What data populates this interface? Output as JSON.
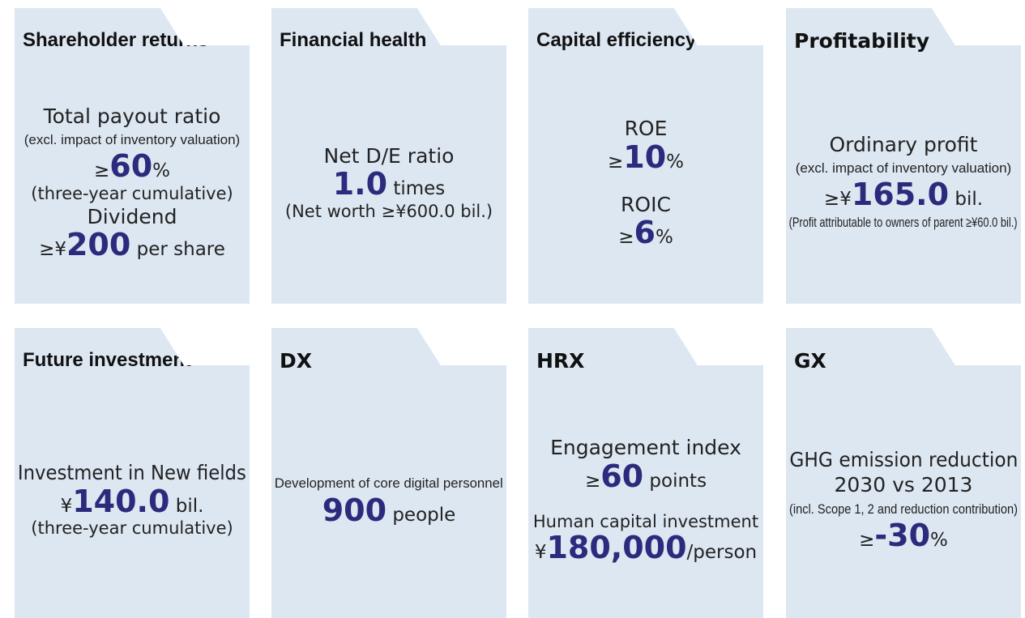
{
  "cards": [
    {
      "title": "Shareholder returns",
      "title_style": "condensed",
      "blocks": [
        [
          {
            "text": "Total payout ratio"
          },
          {
            "text": "(excl. impact of inventory valuation)",
            "style": "note"
          },
          {
            "prefix": "≥",
            "value": "60",
            "suffix": "%"
          },
          {
            "text": "(three-year cumulative)",
            "style": "sub"
          },
          {
            "text": "Dividend"
          },
          {
            "prefix": "≥¥",
            "value": "200",
            "suffix": " per share"
          }
        ]
      ]
    },
    {
      "title": "Financial health",
      "title_style": "condensed",
      "blocks": [
        [
          {
            "text": "Net D/E ratio"
          },
          {
            "value": "1.0",
            "suffix": " times"
          },
          {
            "text": "(Net worth ≥¥600.0 bil.)",
            "style": "sub"
          }
        ]
      ]
    },
    {
      "title": "Capital efficiency",
      "title_style": "condensed",
      "blocks": [
        [
          {
            "text": "ROE"
          },
          {
            "prefix": "≥",
            "value": "10",
            "suffix": "%"
          }
        ],
        [
          {
            "text": "ROIC"
          },
          {
            "prefix": "≥",
            "value": "6",
            "suffix": "%"
          }
        ]
      ]
    },
    {
      "title": "Profitability",
      "title_style": "bold",
      "blocks": [
        [
          {
            "text": "Ordinary profit"
          },
          {
            "text": "(excl. impact of inventory valuation)",
            "style": "note"
          },
          {
            "prefix": "≥¥",
            "value": "165.0",
            "suffix": " bil."
          },
          {
            "text": "(Profit attributable to owners of parent ≥¥60.0 bil.)",
            "style": "note"
          }
        ]
      ]
    },
    {
      "title": "Future investment",
      "title_style": "condensed",
      "blocks": [
        [
          {
            "text": "Investment in New fields"
          },
          {
            "prefix": "¥",
            "value": "140.0",
            "suffix": " bil."
          },
          {
            "text": "(three-year cumulative)",
            "style": "sub"
          }
        ]
      ]
    },
    {
      "title": "DX",
      "title_style": "bold",
      "blocks": [
        [
          {
            "text": "Development of core digital personnel",
            "style": "note"
          },
          {
            "value": "900",
            "suffix": " people"
          }
        ]
      ]
    },
    {
      "title": "HRX",
      "title_style": "bold",
      "blocks": [
        [
          {
            "text": "Engagement index"
          },
          {
            "prefix": "≥",
            "value": "60",
            "suffix": " points"
          }
        ],
        [
          {
            "text": "Human capital investment",
            "style": "sub"
          },
          {
            "prefix": "¥",
            "value": "180,000",
            "suffix": "/person"
          }
        ]
      ]
    },
    {
      "title": "GX",
      "title_style": "bold",
      "blocks": [
        [
          {
            "text": "GHG emission reduction"
          },
          {
            "text": "2030 vs 2013"
          },
          {
            "text": "(incl. Scope 1, 2 and reduction contribution)",
            "style": "note"
          },
          {
            "prefix": "≥",
            "value": "-30",
            "suffix": "%"
          }
        ]
      ]
    }
  ]
}
